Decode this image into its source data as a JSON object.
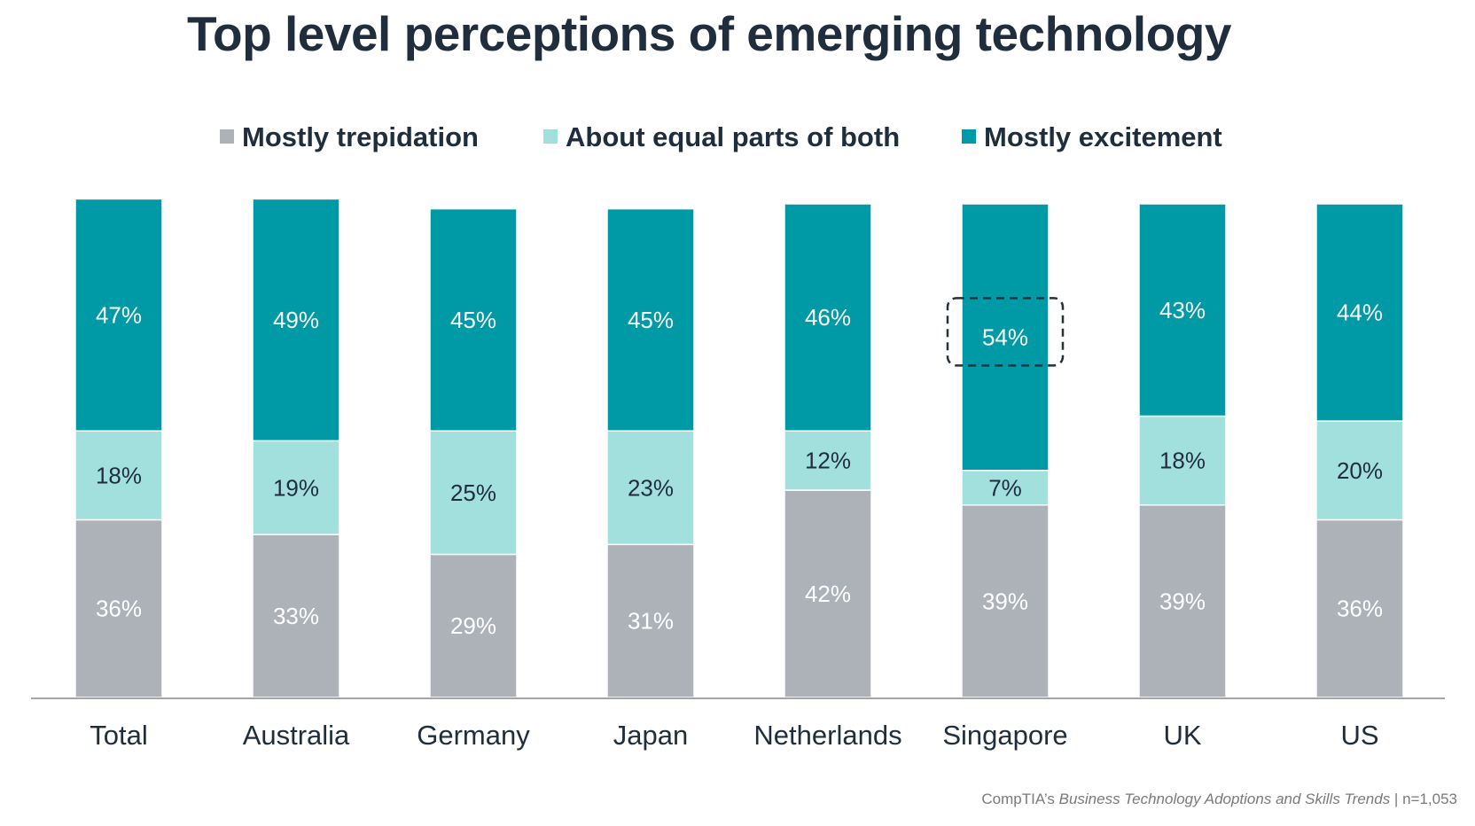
{
  "colors": {
    "trepidation": "#adb2b9",
    "equal": "#a2e0dd",
    "excitement": "#009aa6",
    "title": "#1f2d3d",
    "axis": "#a6a6a6"
  },
  "chart_data": {
    "type": "bar",
    "stacked": true,
    "title": "Top level perceptions of emerging technology",
    "xlabel": "",
    "ylabel": "",
    "ylim": [
      0,
      100
    ],
    "grid": false,
    "legend_position": "top",
    "categories": [
      "Total",
      "Australia",
      "Germany",
      "Japan",
      "Netherlands",
      "Singapore",
      "UK",
      "US"
    ],
    "series": [
      {
        "name": "Mostly trepidation",
        "values": [
          36,
          33,
          29,
          31,
          42,
          39,
          39,
          36
        ],
        "labels": [
          "36%",
          "33%",
          "29%",
          "31%",
          "42%",
          "39%",
          "39%",
          "36%"
        ]
      },
      {
        "name": "About equal parts of both",
        "values": [
          18,
          19,
          25,
          23,
          12,
          7,
          18,
          20
        ],
        "labels": [
          "18%",
          "19%",
          "25%",
          "23%",
          "12%",
          "7%",
          "18%",
          "20%"
        ]
      },
      {
        "name": "Mostly excitement",
        "values": [
          47,
          49,
          45,
          45,
          46,
          54,
          43,
          44
        ],
        "labels": [
          "47%",
          "49%",
          "45%",
          "45%",
          "46%",
          "54%",
          "43%",
          "44%"
        ]
      }
    ],
    "annotations": [
      {
        "text": "54%",
        "category": "Singapore",
        "series": "Mostly excitement",
        "style": "dashed box highlight"
      }
    ]
  },
  "source": {
    "prefix": "CompTIA’s ",
    "title": "Business Technology Adoptions and Skills Trends",
    "suffix": " | n=1,053"
  }
}
